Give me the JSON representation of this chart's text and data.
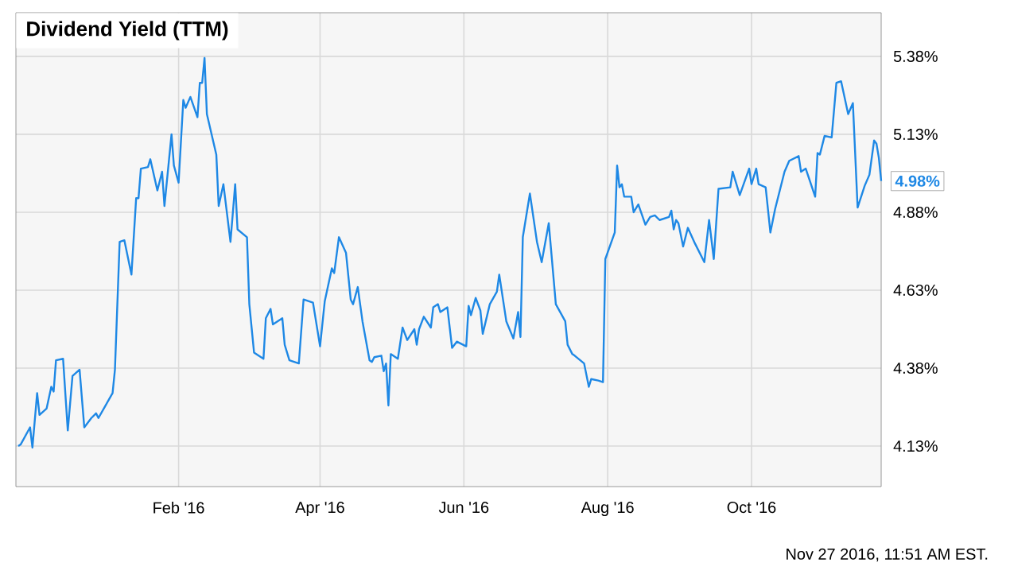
{
  "chart_data": {
    "type": "line",
    "title": "Dividend Yield (TTM)",
    "color": "#1e88e5",
    "grid": true,
    "x": [
      "2015-11-25",
      "2015-11-26",
      "2015-11-30",
      "2015-12-01",
      "2015-12-03",
      "2015-12-04",
      "2015-12-07",
      "2015-12-09",
      "2015-12-10",
      "2015-12-11",
      "2015-12-14",
      "2015-12-16",
      "2015-12-18",
      "2015-12-21",
      "2015-12-23",
      "2015-12-26",
      "2015-12-28",
      "2015-12-29",
      "2016-01-01",
      "2016-01-04",
      "2016-01-05",
      "2016-01-07",
      "2016-01-09",
      "2016-01-12",
      "2016-01-14",
      "2016-01-15",
      "2016-01-16",
      "2016-01-19",
      "2016-01-20",
      "2016-01-23",
      "2016-01-25",
      "2016-01-26",
      "2016-01-29",
      "2016-01-30",
      "2016-02-01",
      "2016-02-03",
      "2016-02-04",
      "2016-02-06",
      "2016-02-09",
      "2016-02-10",
      "2016-02-11",
      "2016-02-12",
      "2016-02-13",
      "2016-02-17",
      "2016-02-18",
      "2016-02-20",
      "2016-02-23",
      "2016-02-25",
      "2016-02-26",
      "2016-03-01",
      "2016-03-02",
      "2016-03-04",
      "2016-03-08",
      "2016-03-09",
      "2016-03-11",
      "2016-03-12",
      "2016-03-16",
      "2016-03-17",
      "2016-03-19",
      "2016-03-23",
      "2016-03-25",
      "2016-03-29",
      "2016-04-01",
      "2016-04-03",
      "2016-04-06",
      "2016-04-07",
      "2016-04-09",
      "2016-04-12",
      "2016-04-14",
      "2016-04-15",
      "2016-04-17",
      "2016-04-19",
      "2016-04-22",
      "2016-04-23",
      "2016-04-24",
      "2016-04-27",
      "2016-04-28",
      "2016-04-29",
      "2016-04-30",
      "2016-05-01",
      "2016-05-04",
      "2016-05-06",
      "2016-05-08",
      "2016-05-11",
      "2016-05-12",
      "2016-05-13",
      "2016-05-15",
      "2016-05-18",
      "2016-05-19",
      "2016-05-21",
      "2016-05-22",
      "2016-05-25",
      "2016-05-27",
      "2016-05-29",
      "2016-06-02",
      "2016-06-03",
      "2016-06-04",
      "2016-06-06",
      "2016-06-08",
      "2016-06-09",
      "2016-06-12",
      "2016-06-15",
      "2016-06-16",
      "2016-06-19",
      "2016-06-22",
      "2016-06-24",
      "2016-06-25",
      "2016-06-26",
      "2016-06-29",
      "2016-07-02",
      "2016-07-04",
      "2016-07-07",
      "2016-07-10",
      "2016-07-14",
      "2016-07-15",
      "2016-07-17",
      "2016-07-18",
      "2016-07-22",
      "2016-07-24",
      "2016-07-25",
      "2016-07-28",
      "2016-07-30",
      "2016-07-31",
      "2016-08-04",
      "2016-08-05",
      "2016-08-06",
      "2016-08-07",
      "2016-08-08",
      "2016-08-11",
      "2016-08-12",
      "2016-08-14",
      "2016-08-17",
      "2016-08-19",
      "2016-08-21",
      "2016-08-23",
      "2016-08-27",
      "2016-08-28",
      "2016-08-29",
      "2016-08-30",
      "2016-08-31",
      "2016-09-02",
      "2016-09-04",
      "2016-09-07",
      "2016-09-11",
      "2016-09-13",
      "2016-09-15",
      "2016-09-17",
      "2016-09-22",
      "2016-09-23",
      "2016-09-26",
      "2016-09-30",
      "2016-10-01",
      "2016-10-03",
      "2016-10-04",
      "2016-10-07",
      "2016-10-09",
      "2016-10-11",
      "2016-10-13",
      "2016-10-15",
      "2016-10-17",
      "2016-10-21",
      "2016-10-22",
      "2016-10-24",
      "2016-10-28",
      "2016-10-29",
      "2016-10-30",
      "2016-11-01",
      "2016-11-04",
      "2016-11-06",
      "2016-11-08",
      "2016-11-11",
      "2016-11-13",
      "2016-11-15",
      "2016-11-18",
      "2016-11-20",
      "2016-11-22",
      "2016-11-23",
      "2016-11-24",
      "2016-11-25"
    ],
    "values": [
      4.13,
      4.135,
      4.19,
      4.125,
      4.3,
      4.23,
      4.25,
      4.32,
      4.305,
      4.405,
      4.41,
      4.18,
      4.355,
      4.375,
      4.19,
      4.22,
      4.235,
      4.22,
      4.26,
      4.3,
      4.375,
      4.785,
      4.79,
      4.68,
      4.925,
      4.925,
      5.02,
      5.025,
      5.05,
      4.95,
      5.01,
      4.9,
      5.13,
      5.03,
      4.975,
      5.24,
      5.215,
      5.25,
      5.185,
      5.295,
      5.295,
      5.375,
      5.195,
      5.065,
      4.9,
      4.97,
      4.785,
      4.97,
      4.825,
      4.8,
      4.585,
      4.43,
      4.41,
      4.54,
      4.57,
      4.52,
      4.54,
      4.455,
      4.405,
      4.395,
      4.6,
      4.59,
      4.45,
      4.595,
      4.7,
      4.685,
      4.8,
      4.75,
      4.6,
      4.585,
      4.64,
      4.53,
      4.405,
      4.4,
      4.415,
      4.42,
      4.37,
      4.395,
      4.26,
      4.425,
      4.41,
      4.51,
      4.47,
      4.505,
      4.455,
      4.505,
      4.545,
      4.51,
      4.575,
      4.585,
      4.56,
      4.575,
      4.445,
      4.465,
      4.45,
      4.58,
      4.55,
      4.605,
      4.565,
      4.49,
      4.585,
      4.625,
      4.68,
      4.53,
      4.475,
      4.56,
      4.48,
      4.8,
      4.94,
      4.785,
      4.72,
      4.845,
      4.585,
      4.53,
      4.455,
      4.425,
      4.42,
      4.395,
      4.32,
      4.345,
      4.34,
      4.335,
      4.73,
      4.815,
      5.03,
      4.96,
      4.97,
      4.93,
      4.93,
      4.88,
      4.905,
      4.84,
      4.865,
      4.87,
      4.855,
      4.865,
      4.885,
      4.825,
      4.855,
      4.845,
      4.77,
      4.83,
      4.78,
      4.72,
      4.855,
      4.73,
      4.955,
      4.96,
      5.01,
      4.935,
      5.02,
      4.97,
      5.02,
      4.97,
      4.96,
      4.815,
      4.89,
      4.95,
      5.01,
      5.045,
      5.06,
      5.01,
      5.02,
      4.93,
      5.07,
      5.065,
      5.125,
      5.12,
      5.295,
      5.3,
      5.195,
      5.23,
      4.895,
      4.965,
      5.0,
      5.11,
      5.1,
      5.055,
      4.98
    ],
    "xlim": [
      "2015-11-24",
      "2016-11-25"
    ],
    "xticks": [
      {
        "value": "2016-02-01",
        "label": "Feb '16"
      },
      {
        "value": "2016-04-01",
        "label": "Apr '16"
      },
      {
        "value": "2016-06-01",
        "label": "Jun '16"
      },
      {
        "value": "2016-08-01",
        "label": "Aug '16"
      },
      {
        "value": "2016-10-01",
        "label": "Oct '16"
      }
    ],
    "ylim": [
      4.0,
      5.52
    ],
    "yticks": [
      {
        "value": 4.13,
        "label": "4.13%"
      },
      {
        "value": 4.38,
        "label": "4.38%"
      },
      {
        "value": 4.63,
        "label": "4.63%"
      },
      {
        "value": 4.88,
        "label": "4.88%"
      },
      {
        "value": 5.13,
        "label": "5.13%"
      },
      {
        "value": 5.38,
        "label": "5.38%"
      }
    ],
    "annotations": [
      {
        "text": "4.98%",
        "x": "2016-11-25",
        "y": 4.98
      },
      "Nov 27 2016, 11:51 AM EST."
    ]
  }
}
